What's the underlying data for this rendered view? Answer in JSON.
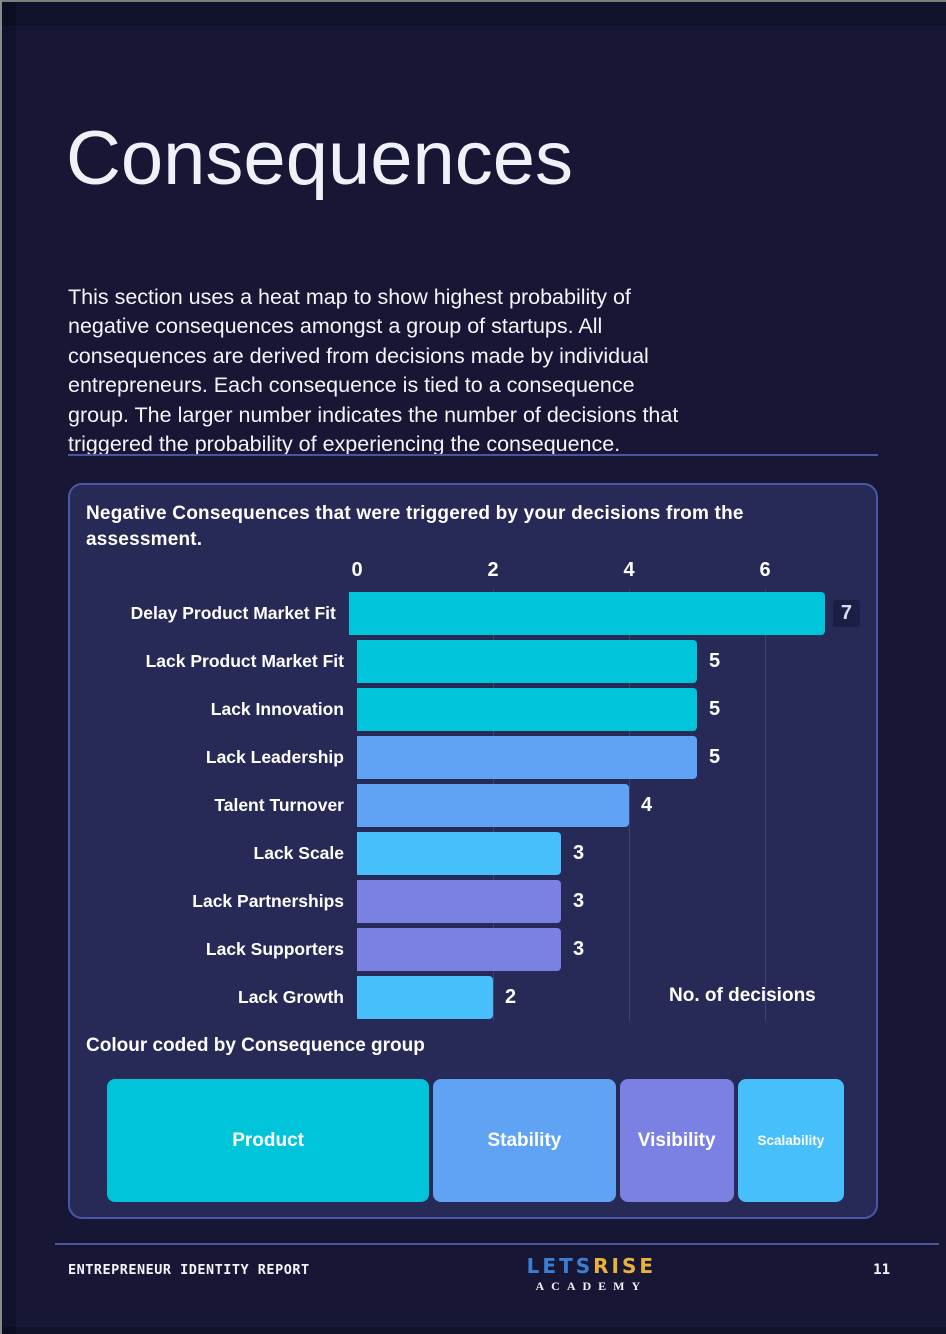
{
  "page": {
    "title": "Consequences",
    "intro_lines": [
      "This section uses a heat map to show highest probability of",
      "negative consequences amongst a group of startups. All",
      "consequences are derived from decisions made by individual",
      "entrepreneurs. Each consequence is tied to a consequence",
      "group. The larger number indicates the number of decisions that",
      "triggered the probability of experiencing the consequence."
    ]
  },
  "chart_data": {
    "type": "bar",
    "orientation": "horizontal",
    "title": "Negative Consequences that were triggered by your decisions from the assessment.",
    "xlabel": "No. of decisions",
    "xlim": [
      0,
      7
    ],
    "xticks": [
      0,
      2,
      4,
      6
    ],
    "gridlines": [
      2,
      4,
      6
    ],
    "categories": [
      "Delay Product Market Fit",
      "Lack Product Market Fit",
      "Lack Innovation",
      "Lack Leadership",
      "Talent Turnover",
      "Lack Scale",
      "Lack Partnerships",
      "Lack Supporters",
      "Lack Growth"
    ],
    "values": [
      7,
      5,
      5,
      5,
      4,
      3,
      3,
      3,
      2
    ],
    "bars": [
      {
        "label": "Delay Product Market Fit",
        "value": 7,
        "group": "Product",
        "color": "#00c5da",
        "highlighted": true
      },
      {
        "label": "Lack Product Market Fit",
        "value": 5,
        "group": "Product",
        "color": "#00c5da",
        "highlighted": false
      },
      {
        "label": "Lack Innovation",
        "value": 5,
        "group": "Product",
        "color": "#00c5da",
        "highlighted": false
      },
      {
        "label": "Lack Leadership",
        "value": 5,
        "group": "Stability",
        "color": "#60a3f5",
        "highlighted": false
      },
      {
        "label": "Talent Turnover",
        "value": 4,
        "group": "Stability",
        "color": "#60a3f5",
        "highlighted": false
      },
      {
        "label": "Lack Scale",
        "value": 3,
        "group": "Scalability",
        "color": "#47bffa",
        "highlighted": false
      },
      {
        "label": "Lack Partnerships",
        "value": 3,
        "group": "Visibility",
        "color": "#7b80e3",
        "highlighted": false
      },
      {
        "label": "Lack Supporters",
        "value": 3,
        "group": "Visibility",
        "color": "#7b80e3",
        "highlighted": false
      },
      {
        "label": "Lack Growth",
        "value": 2,
        "group": "Scalability",
        "color": "#47bffa",
        "highlighted": false
      }
    ]
  },
  "legend": {
    "title": "Colour coded by Consequence group",
    "items": [
      {
        "label": "Product",
        "color": "#00c5da",
        "share": 44
      },
      {
        "label": "Stability",
        "color": "#60a3f5",
        "share": 24.9
      },
      {
        "label": "Visibility",
        "color": "#7b80e3",
        "share": 15.6
      },
      {
        "label": "Scalability",
        "color": "#47bffa",
        "share": 14.5
      }
    ]
  },
  "footer": {
    "report_name": "ENTREPRENEUR IDENTITY REPORT",
    "logo": {
      "part1": "LETS",
      "part2": "RISE",
      "subtitle": "ACADEMY"
    },
    "page_number": "11"
  },
  "colors": {
    "page_bg": "#171735",
    "panel_bg": "#272a56",
    "panel_border": "#4a57a8",
    "divider": "#4a55a0",
    "group_product": "#00c5da",
    "group_stability": "#60a3f5",
    "group_visibility": "#7b80e3",
    "group_scalability": "#47bffa",
    "logo_blue": "#3b7fd4",
    "logo_gold": "#e9b23a"
  }
}
